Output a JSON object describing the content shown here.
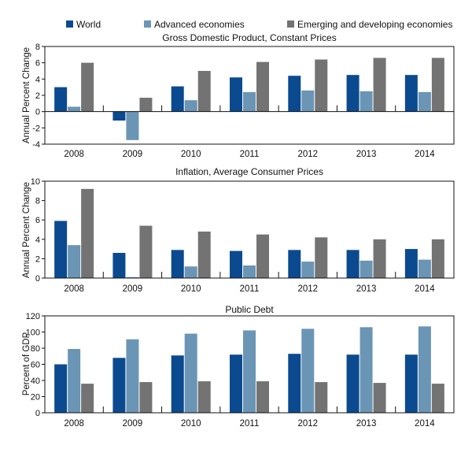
{
  "colors": {
    "world": "#0b4a8f",
    "advanced": "#6b95b5",
    "emerging": "#737373"
  },
  "legend": [
    {
      "label": "World",
      "key": "world"
    },
    {
      "label": "Advanced economies",
      "key": "advanced"
    },
    {
      "label": "Emerging and developing economies",
      "key": "emerging"
    }
  ],
  "chart_data": [
    {
      "type": "bar",
      "title": "Gross Domestic Product, Constant Prices",
      "ylabel": "Annual Percent Change",
      "xlabel": "",
      "ylim": [
        -4,
        8
      ],
      "yticks": [
        -4,
        -2,
        0,
        2,
        4,
        6,
        8
      ],
      "ytick_labels": [
        "-4",
        "-2",
        "0",
        "2",
        "4",
        "6",
        "8"
      ],
      "categories": [
        "2008",
        "2009",
        "2010",
        "2011",
        "2012",
        "2013",
        "2014"
      ],
      "series": [
        {
          "name": "World",
          "key": "world",
          "values": [
            3.0,
            -1.1,
            3.1,
            4.2,
            4.4,
            4.5,
            4.5
          ]
        },
        {
          "name": "Advanced economies",
          "key": "advanced",
          "values": [
            0.6,
            -3.5,
            1.4,
            2.4,
            2.6,
            2.5,
            2.4
          ]
        },
        {
          "name": "Emerging and developing economies",
          "key": "emerging",
          "values": [
            6.0,
            1.7,
            5.0,
            6.1,
            6.4,
            6.6,
            6.6
          ]
        }
      ],
      "grid": false
    },
    {
      "type": "bar",
      "title": "Inflation, Average Consumer Prices",
      "ylabel": "Annual Percent Change",
      "xlabel": "",
      "ylim": [
        0,
        10
      ],
      "yticks": [
        0,
        2,
        4,
        6,
        8,
        10
      ],
      "ytick_labels": [
        "0",
        "2",
        "4",
        "6",
        "8",
        "10"
      ],
      "categories": [
        "2008",
        "2009",
        "2010",
        "2011",
        "2012",
        "2013",
        "2014"
      ],
      "series": [
        {
          "name": "World",
          "key": "world",
          "values": [
            5.9,
            2.6,
            2.9,
            2.8,
            2.9,
            2.9,
            3.0
          ]
        },
        {
          "name": "Advanced economies",
          "key": "advanced",
          "values": [
            3.4,
            0.1,
            1.2,
            1.3,
            1.7,
            1.8,
            1.9
          ]
        },
        {
          "name": "Emerging and developing economies",
          "key": "emerging",
          "values": [
            9.2,
            5.4,
            4.8,
            4.5,
            4.2,
            4.0,
            4.0
          ]
        }
      ],
      "grid": false
    },
    {
      "type": "bar",
      "title": "Public Debt",
      "ylabel": "Percent of GDP",
      "xlabel": "",
      "ylim": [
        0,
        120
      ],
      "yticks": [
        0,
        20,
        40,
        60,
        80,
        100,
        120
      ],
      "ytick_labels": [
        "0",
        "20",
        "40",
        "60",
        "80",
        "100",
        "120"
      ],
      "categories": [
        "2008",
        "2009",
        "2010",
        "2011",
        "2012",
        "2013",
        "2014"
      ],
      "series": [
        {
          "name": "World",
          "key": "world",
          "values": [
            60,
            68,
            71,
            72,
            73,
            72,
            72
          ]
        },
        {
          "name": "Advanced economies",
          "key": "advanced",
          "values": [
            79,
            91,
            98,
            102,
            104,
            106,
            107
          ]
        },
        {
          "name": "Emerging and developing economies",
          "key": "emerging",
          "values": [
            36,
            38,
            39,
            39,
            38,
            37,
            36
          ]
        }
      ],
      "grid": false
    }
  ]
}
